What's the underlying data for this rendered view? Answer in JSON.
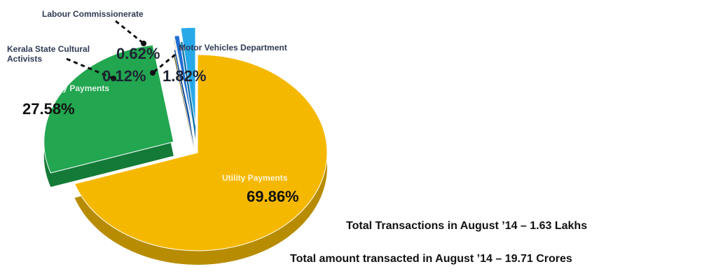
{
  "chart_data": {
    "type": "pie",
    "title": "",
    "slices": [
      {
        "label": "Utility Payments",
        "value": 69.86,
        "display": "69.86%",
        "color": "#f5b800",
        "side_color": "#b88c00"
      },
      {
        "label": "University Payments",
        "value": 27.58,
        "display": "27.58%",
        "color": "#22a650",
        "side_color": "#137a37"
      },
      {
        "label": "Kerala State Cultural Activists",
        "value": 0.12,
        "display": "0.12%",
        "color": "#8a7a1a",
        "side_color": "#5c5210"
      },
      {
        "label": "Labour Commissionerate",
        "value": 0.62,
        "display": "0.62%",
        "color": "#1f6fd0",
        "side_color": "#114a96"
      },
      {
        "label": "Motor Vehicles Department",
        "value": 1.82,
        "display": "1.82%",
        "color": "#27a9e8",
        "side_color": "#1577ab"
      }
    ],
    "annotations": {
      "kerala_line1": "Kerala State Cultural",
      "kerala_line2": "Activists"
    }
  },
  "summary": {
    "transactions": "Total Transactions in August  ’14 – 1.63 Lakhs",
    "amount": "Total amount transacted in August ’14 – 19.71 Crores"
  }
}
